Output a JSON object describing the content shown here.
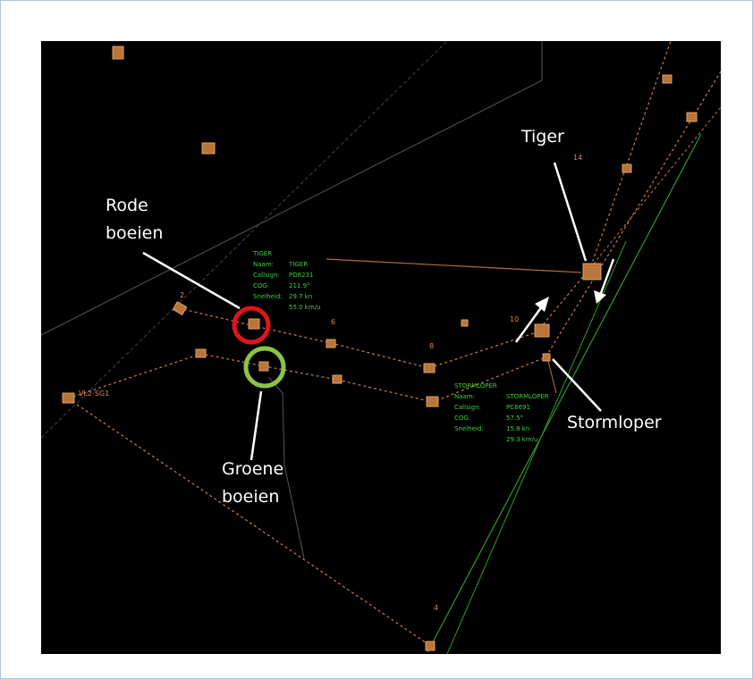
{
  "annotations": {
    "tiger": "Tiger",
    "rode_boeien": [
      "Rode",
      "boeien"
    ],
    "groene_boeien": [
      "Groene",
      "boeien"
    ],
    "stormloper": "Stormloper"
  },
  "buoy_labels": [
    "2",
    "6",
    "8",
    "10",
    "4",
    "14",
    "VL2-SG1"
  ],
  "vessels": [
    {
      "header": "TIGER",
      "rows": [
        {
          "label": "Naam:",
          "values": [
            "TIGER"
          ]
        },
        {
          "label": "Callsign:",
          "values": [
            "PD8231"
          ]
        },
        {
          "label": "COG:",
          "values": [
            "211.9°"
          ]
        },
        {
          "label": "Snelheid:",
          "values": [
            "29.7 kn",
            "55.0 km/u"
          ]
        }
      ]
    },
    {
      "header": "STORMLOPER",
      "rows": [
        {
          "label": "Naam:",
          "values": [
            "STORMLOPER"
          ]
        },
        {
          "label": "Callsign:",
          "values": [
            "PC6691"
          ]
        },
        {
          "label": "COG:",
          "values": [
            "57.5°"
          ]
        },
        {
          "label": "Snelheid:",
          "values": [
            "15.8 kn",
            "29.3 km/u"
          ]
        }
      ]
    }
  ]
}
